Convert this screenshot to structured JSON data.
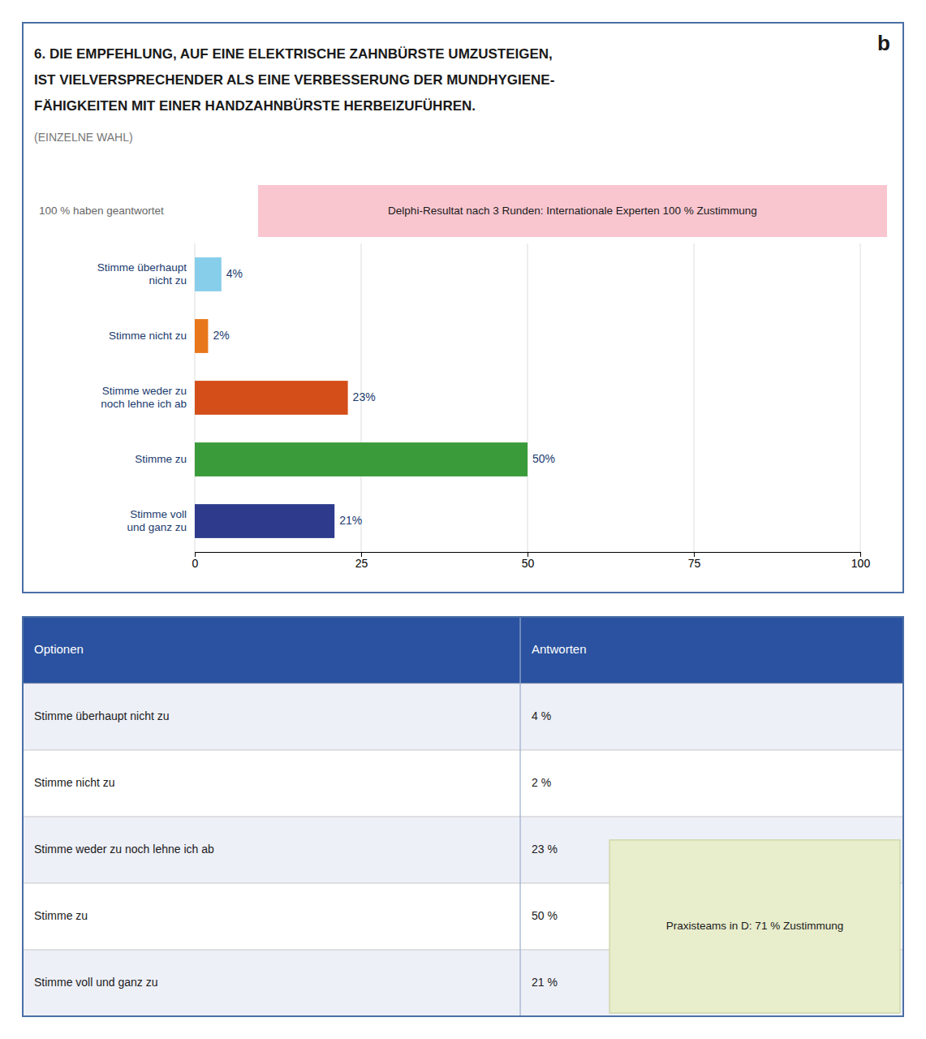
{
  "chart_data": {
    "type": "bar",
    "orientation": "horizontal",
    "title": [
      "6.  DIE EMPFEHLUNG, AUF EINE ELEKTRISCHE ZAHNBÜRSTE UMZUSTEIGEN,",
      "IST VIELVERSPRECHENDER ALS EINE VERBESSERUNG DER MUNDHYGIENE-",
      "FÄHIGKEITEN MIT EINER HANDZAHNBÜRSTE HERBEIZUFÜHREN."
    ],
    "subtitle": "(EINZELNE WAHL)",
    "annotations": [
      {
        "text": "b"
      },
      {
        "text": "100 % haben geantwortet"
      },
      {
        "text": "Delphi-Resultat nach 3 Runden: Internationale Experten 100 % Zustimmung",
        "color": "#f9c6d0"
      },
      {
        "text": "Praxisteams in D: 71 % Zustimmung",
        "color": "#e8edcc"
      }
    ],
    "categories": [
      "Stimme überhaupt\nnicht zu",
      "Stimme nicht zu",
      "Stimme weder zu\nnoch lehne ich ab",
      "Stimme zu",
      "Stimme voll\nund ganz zu"
    ],
    "values": [
      4,
      2,
      23,
      50,
      21
    ],
    "value_labels": [
      "4%",
      "2%",
      "23%",
      "50%",
      "21%"
    ],
    "data_labels": true,
    "colors": [
      "#87CEEB",
      "#E8761A",
      "#D44E1A",
      "#3A9B3A",
      "#2E3A8C"
    ],
    "xlim": [
      0,
      100
    ],
    "xticks": [
      0,
      25,
      50,
      75,
      100
    ],
    "grid": true,
    "table": {
      "columns": [
        "Optionen",
        "Antworten"
      ],
      "rows": [
        [
          "Stimme überhaupt nicht zu",
          "4 %"
        ],
        [
          "Stimme nicht zu",
          "2 %"
        ],
        [
          "Stimme weder zu noch lehne ich ab",
          "23 %"
        ],
        [
          "Stimme zu",
          "50 %"
        ],
        [
          "Stimme voll und ganz zu",
          "21 %"
        ]
      ]
    }
  }
}
